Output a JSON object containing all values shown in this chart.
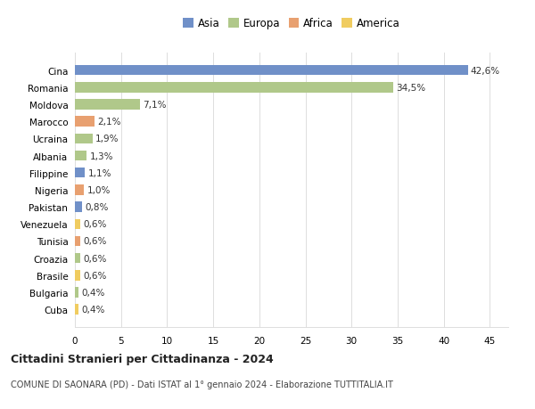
{
  "countries": [
    "Cina",
    "Romania",
    "Moldova",
    "Marocco",
    "Ucraina",
    "Albania",
    "Filippine",
    "Nigeria",
    "Pakistan",
    "Venezuela",
    "Tunisia",
    "Croazia",
    "Brasile",
    "Bulgaria",
    "Cuba"
  ],
  "values": [
    42.6,
    34.5,
    7.1,
    2.1,
    1.9,
    1.3,
    1.1,
    1.0,
    0.8,
    0.6,
    0.6,
    0.6,
    0.6,
    0.4,
    0.4
  ],
  "labels": [
    "42,6%",
    "34,5%",
    "7,1%",
    "2,1%",
    "1,9%",
    "1,3%",
    "1,1%",
    "1,0%",
    "0,8%",
    "0,6%",
    "0,6%",
    "0,6%",
    "0,6%",
    "0,4%",
    "0,4%"
  ],
  "continents": [
    "Asia",
    "Europa",
    "Europa",
    "Africa",
    "Europa",
    "Europa",
    "Asia",
    "Africa",
    "Asia",
    "America",
    "Africa",
    "Europa",
    "America",
    "Europa",
    "America"
  ],
  "colors": {
    "Asia": "#7090c8",
    "Europa": "#b0c88a",
    "Africa": "#e8a070",
    "America": "#f0cc60"
  },
  "legend_order": [
    "Asia",
    "Europa",
    "Africa",
    "America"
  ],
  "title": "Cittadini Stranieri per Cittadinanza - 2024",
  "subtitle": "COMUNE DI SAONARA (PD) - Dati ISTAT al 1° gennaio 2024 - Elaborazione TUTTITALIA.IT",
  "xlim": [
    0,
    47
  ],
  "xticks": [
    0,
    5,
    10,
    15,
    20,
    25,
    30,
    35,
    40,
    45
  ],
  "background_color": "#ffffff",
  "grid_color": "#dddddd"
}
